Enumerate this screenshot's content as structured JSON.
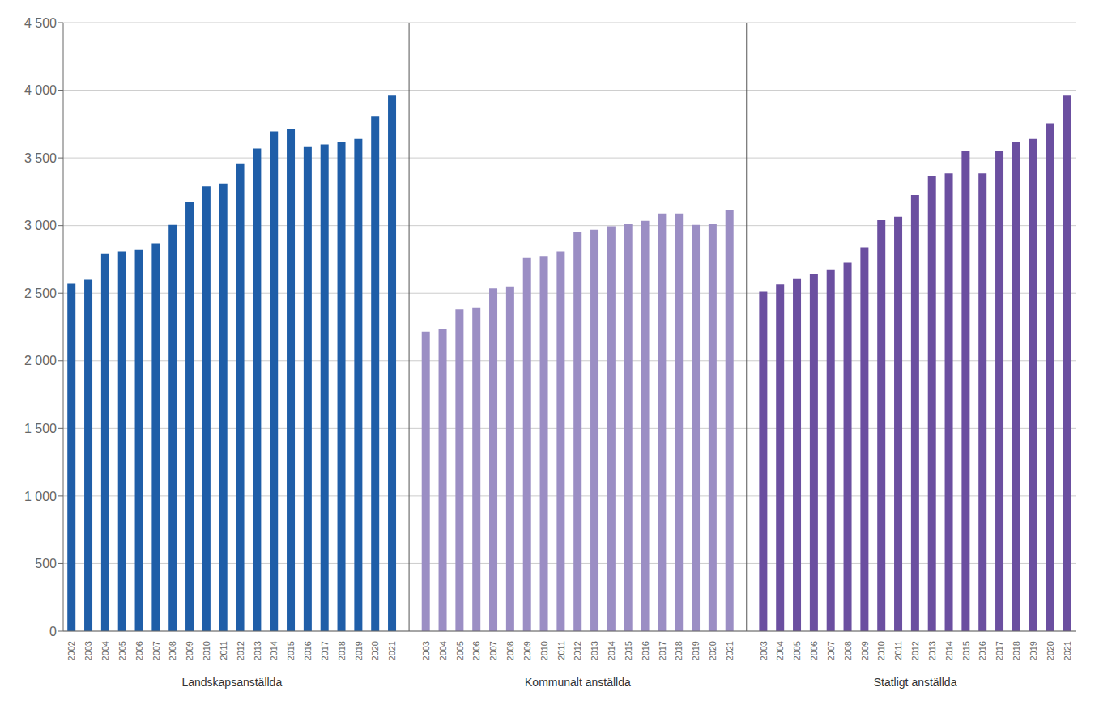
{
  "chart_data": {
    "type": "bar",
    "categories": [
      "2002",
      "2003",
      "2004",
      "2005",
      "2006",
      "2007",
      "2008",
      "2009",
      "2010",
      "2011",
      "2012",
      "2013",
      "2014",
      "2015",
      "2016",
      "2017",
      "2018",
      "2019",
      "2020",
      "2021",
      "2003",
      "2004",
      "2005",
      "2006",
      "2007",
      "2008",
      "2009",
      "2010",
      "2011",
      "2012",
      "2013",
      "2014",
      "2015",
      "2016",
      "2017",
      "2018",
      "2019",
      "2020",
      "2021",
      "2003",
      "2004",
      "2005",
      "2006",
      "2007",
      "2008",
      "2009",
      "2010",
      "2011",
      "2012",
      "2013",
      "2014",
      "2015",
      "2016",
      "2017",
      "2018",
      "2019",
      "2020",
      "2021"
    ],
    "series": [
      {
        "name": "Landskapsanställda",
        "color": "#1F5EA8",
        "values": [
          2570,
          2600,
          2790,
          2810,
          2820,
          2870,
          3005,
          3175,
          3290,
          3310,
          3455,
          3570,
          3695,
          3710,
          3580,
          3600,
          3620,
          3640,
          3810,
          3960,
          null,
          null,
          null,
          null,
          null,
          null,
          null,
          null,
          null,
          null,
          null,
          null,
          null,
          null,
          null,
          null,
          null,
          null,
          null,
          null,
          null,
          null,
          null,
          null,
          null,
          null,
          null,
          null,
          null,
          null,
          null,
          null,
          null,
          null,
          null,
          null,
          null,
          null
        ]
      },
      {
        "name": "Kommunalt anställda",
        "color": "#9B8EC4",
        "values": [
          null,
          null,
          null,
          null,
          null,
          null,
          null,
          null,
          null,
          null,
          null,
          null,
          null,
          null,
          null,
          null,
          null,
          null,
          null,
          null,
          2215,
          2235,
          2380,
          2395,
          2535,
          2545,
          2760,
          2775,
          2810,
          2950,
          2970,
          2995,
          3010,
          3035,
          3090,
          3090,
          3005,
          3010,
          3115,
          null,
          null,
          null,
          null,
          null,
          null,
          null,
          null,
          null,
          null,
          null,
          null,
          null,
          null,
          null,
          null,
          null,
          null,
          null
        ]
      },
      {
        "name": "Statligt anställda",
        "color": "#6B4FA0",
        "values": [
          null,
          null,
          null,
          null,
          null,
          null,
          null,
          null,
          null,
          null,
          null,
          null,
          null,
          null,
          null,
          null,
          null,
          null,
          null,
          null,
          null,
          null,
          null,
          null,
          null,
          null,
          null,
          null,
          null,
          null,
          null,
          null,
          null,
          null,
          null,
          null,
          null,
          null,
          null,
          2510,
          2565,
          2605,
          2645,
          2670,
          2725,
          2840,
          3040,
          3065,
          3225,
          3365,
          3385,
          3555,
          3385,
          3555,
          3615,
          3640,
          3755,
          3960
        ]
      }
    ],
    "ylim": [
      0,
      4500
    ],
    "yticks": [
      0,
      500,
      {
        "value": 1000,
        "label": "1 000"
      },
      {
        "value": 1500,
        "label": "1 500"
      },
      {
        "value": 2000,
        "label": "2 000"
      },
      {
        "value": 2500,
        "label": "2 500"
      },
      {
        "value": 3000,
        "label": "3 000"
      },
      {
        "value": 3500,
        "label": "3 500"
      },
      {
        "value": 4000,
        "label": "4 000"
      },
      {
        "value": 4500,
        "label": "4 500"
      }
    ],
    "grid": true
  }
}
